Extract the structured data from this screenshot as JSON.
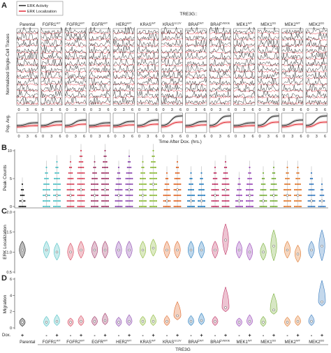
{
  "panel_letters": [
    "A",
    "B",
    "C",
    "D"
  ],
  "legend": [
    "ERK Activity",
    "ERK Localization"
  ],
  "group_header": "TRE3G::",
  "conditions": [
    "Parental",
    "FGFR1WT",
    "FGFR2WT",
    "EGFRWT",
    "HER2WT",
    "KRASWT",
    "KRASG12V",
    "BRAFWT",
    "BRAFV600E",
    "MEK1WT",
    "MEK1DD",
    "MEK2WT",
    "MEK2DD"
  ],
  "condition_labels": [
    {
      "base": "Parental",
      "sup": ""
    },
    {
      "base": "FGFR1",
      "sup": "WT"
    },
    {
      "base": "FGFR2",
      "sup": "WT"
    },
    {
      "base": "EGFR",
      "sup": "WT"
    },
    {
      "base": "HER2",
      "sup": "WT"
    },
    {
      "base": "KRAS",
      "sup": "WT"
    },
    {
      "base": "KRAS",
      "sup": "G12V"
    },
    {
      "base": "BRAF",
      "sup": "WT"
    },
    {
      "base": "BRAF",
      "sup": "V600E"
    },
    {
      "base": "MEK1",
      "sup": "WT"
    },
    {
      "base": "MEK1",
      "sup": "DD"
    },
    {
      "base": "MEK2",
      "sup": "WT"
    },
    {
      "base": "MEK2",
      "sup": "DD"
    }
  ],
  "colors": [
    "#222222",
    "#4fc0c4",
    "#d8485f",
    "#a23a6a",
    "#8f4cb0",
    "#8dba3a",
    "#e06a2c",
    "#2a7fbf",
    "#c23a6a",
    "#9a49b8",
    "#7ab03c",
    "#e07a30",
    "#3c7ec0"
  ],
  "trace_colors": {
    "activity": "#1a1a1a",
    "localization": "#e0202c"
  },
  "panel_a": {
    "ylabel_traces": "Normalized Single-Cell Traces",
    "ylabel_avg": "Pop. Avg.",
    "xlabel": "Time After Dox. (hrs.)",
    "xticks": [
      "0",
      "3",
      "6"
    ]
  },
  "panel_b": {
    "ylabel": "Peak Counts",
    "ylim": [
      0,
      10
    ],
    "yticks": [
      "0",
      "5",
      "10"
    ]
  },
  "panel_c": {
    "ylabel": "ERK Localization",
    "ylim": [
      0.5,
      2.0
    ],
    "yticks": [
      "0.5",
      "1.0",
      "1.5",
      "2.0"
    ]
  },
  "panel_d": {
    "ylabel": "Migration",
    "ylim": [
      0,
      6
    ],
    "yticks": [
      "0",
      "2",
      "4",
      "6"
    ]
  },
  "dox_label": "Dox.",
  "dox_signs": [
    "-",
    "+"
  ],
  "footer": "TRE3G",
  "chart_data": {
    "type": "violin",
    "x_groups": [
      "Parental",
      "FGFR1WT",
      "FGFR2WT",
      "EGFRWT",
      "HER2WT",
      "KRASWT",
      "KRASG12V",
      "BRAFWT",
      "BRAFV600E",
      "MEK1WT",
      "MEK1DD",
      "MEK2WT",
      "MEK2DD"
    ],
    "dox": [
      "-",
      "+"
    ],
    "peak_counts_median": [
      [
        1,
        0
      ],
      [
        2,
        2
      ],
      [
        2,
        3
      ],
      [
        2,
        3
      ],
      [
        2,
        3
      ],
      [
        2,
        4
      ],
      [
        1,
        3
      ],
      [
        1,
        1
      ],
      [
        2,
        3
      ],
      [
        1,
        2
      ],
      [
        1,
        2
      ],
      [
        2,
        2
      ],
      [
        1,
        1
      ]
    ],
    "peak_counts_max": [
      [
        4,
        0
      ],
      [
        7,
        8
      ],
      [
        8,
        10
      ],
      [
        8,
        10
      ],
      [
        7,
        9
      ],
      [
        8,
        10
      ],
      [
        6,
        8
      ],
      [
        6,
        6
      ],
      [
        7,
        8
      ],
      [
        5,
        7
      ],
      [
        6,
        7
      ],
      [
        7,
        7
      ],
      [
        6,
        4
      ]
    ],
    "erk_localization_median": [
      [
        1.05,
        0
      ],
      [
        1.05,
        1.0
      ],
      [
        1.0,
        1.05
      ],
      [
        1.05,
        1.05
      ],
      [
        1.05,
        1.05
      ],
      [
        1.05,
        1.1
      ],
      [
        1.05,
        1.05
      ],
      [
        1.05,
        1.05
      ],
      [
        1.05,
        1.3
      ],
      [
        1.05,
        1.0
      ],
      [
        1.0,
        1.15
      ],
      [
        1.05,
        0.95
      ],
      [
        1.05,
        1.15
      ]
    ],
    "migration_median": [
      [
        0.7,
        0
      ],
      [
        0.7,
        0.8
      ],
      [
        0.7,
        0.8
      ],
      [
        0.8,
        0.9
      ],
      [
        0.7,
        0.8
      ],
      [
        0.8,
        0.8
      ],
      [
        0.8,
        1.5
      ],
      [
        0.8,
        0.9
      ],
      [
        0.8,
        2.5
      ],
      [
        0.7,
        0.8
      ],
      [
        0.7,
        2.2
      ],
      [
        0.7,
        0.8
      ],
      [
        0.8,
        3.2
      ]
    ],
    "migration_max": [
      [
        1.2,
        0
      ],
      [
        1.4,
        1.6
      ],
      [
        1.2,
        1.5
      ],
      [
        1.4,
        1.8
      ],
      [
        1.3,
        1.6
      ],
      [
        1.4,
        1.6
      ],
      [
        1.5,
        3.2
      ],
      [
        1.5,
        1.8
      ],
      [
        1.4,
        5.0
      ],
      [
        1.2,
        1.6
      ],
      [
        1.4,
        4.2
      ],
      [
        1.3,
        1.5
      ],
      [
        1.6,
        5.8
      ]
    ]
  }
}
